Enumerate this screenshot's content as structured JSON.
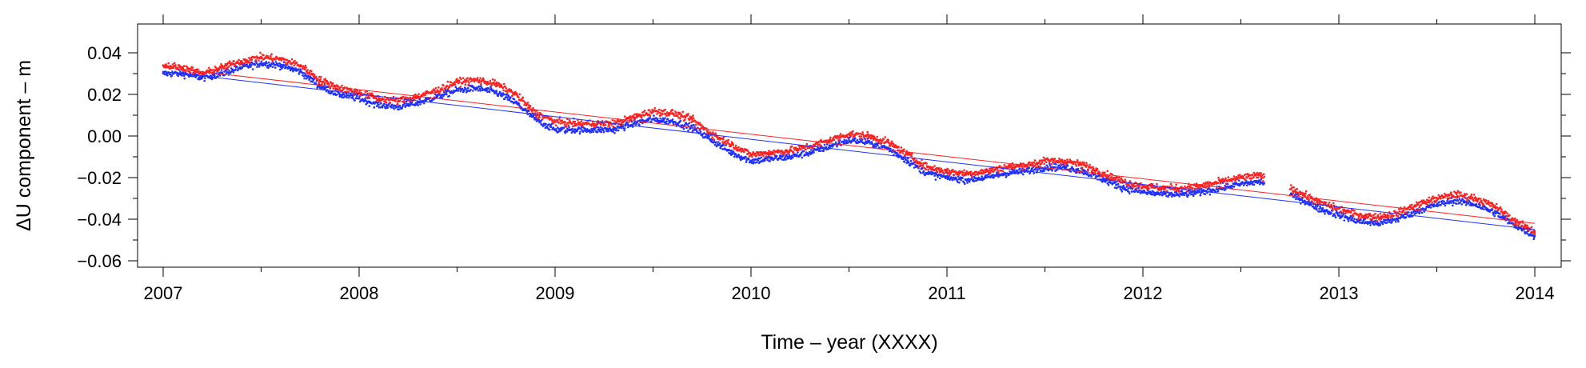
{
  "chart_data": {
    "type": "scatter",
    "title": "",
    "xlabel": "Time – year (XXXX)",
    "ylabel": "ΔU component – m",
    "xlim": [
      2007,
      2014
    ],
    "ylim": [
      -0.06,
      0.05
    ],
    "x_ticks": [
      2007,
      2008,
      2009,
      2010,
      2011,
      2012,
      2013,
      2014
    ],
    "x_tick_labels": [
      "2007",
      "2008",
      "2009",
      "2010",
      "2011",
      "2012",
      "2013",
      "2014"
    ],
    "y_ticks": [
      -0.06,
      -0.04,
      -0.02,
      0.0,
      0.02,
      0.04
    ],
    "y_tick_labels": [
      "−0.06",
      "−0.04",
      "−0.02",
      "0.00",
      "0.02",
      "0.04"
    ],
    "grid": false,
    "legend": "none",
    "data_gap": [
      2012.62,
      2012.75
    ],
    "series": [
      {
        "color": "#ff2020",
        "marker": "dot",
        "trend_line": {
          "x": [
            2007,
            2014
          ],
          "y": [
            0.033,
            -0.042
          ]
        },
        "points": [
          [
            2007.0,
            0.034
          ],
          [
            2007.1,
            0.033
          ],
          [
            2007.2,
            0.03
          ],
          [
            2007.3,
            0.033
          ],
          [
            2007.4,
            0.036
          ],
          [
            2007.5,
            0.038
          ],
          [
            2007.6,
            0.037
          ],
          [
            2007.7,
            0.034
          ],
          [
            2007.8,
            0.027
          ],
          [
            2007.9,
            0.023
          ],
          [
            2008.0,
            0.021
          ],
          [
            2008.1,
            0.018
          ],
          [
            2008.2,
            0.017
          ],
          [
            2008.3,
            0.019
          ],
          [
            2008.4,
            0.022
          ],
          [
            2008.5,
            0.026
          ],
          [
            2008.6,
            0.027
          ],
          [
            2008.7,
            0.025
          ],
          [
            2008.8,
            0.02
          ],
          [
            2008.9,
            0.011
          ],
          [
            2009.0,
            0.007
          ],
          [
            2009.1,
            0.006
          ],
          [
            2009.2,
            0.006
          ],
          [
            2009.3,
            0.006
          ],
          [
            2009.4,
            0.009
          ],
          [
            2009.5,
            0.012
          ],
          [
            2009.6,
            0.011
          ],
          [
            2009.7,
            0.008
          ],
          [
            2009.8,
            0.001
          ],
          [
            2009.9,
            -0.004
          ],
          [
            2010.0,
            -0.009
          ],
          [
            2010.1,
            -0.008
          ],
          [
            2010.2,
            -0.007
          ],
          [
            2010.3,
            -0.005
          ],
          [
            2010.4,
            -0.002
          ],
          [
            2010.5,
            0.001
          ],
          [
            2010.6,
            0.0
          ],
          [
            2010.7,
            -0.003
          ],
          [
            2010.8,
            -0.009
          ],
          [
            2010.9,
            -0.015
          ],
          [
            2011.0,
            -0.017
          ],
          [
            2011.1,
            -0.018
          ],
          [
            2011.2,
            -0.017
          ],
          [
            2011.3,
            -0.015
          ],
          [
            2011.4,
            -0.014
          ],
          [
            2011.5,
            -0.012
          ],
          [
            2011.6,
            -0.012
          ],
          [
            2011.7,
            -0.014
          ],
          [
            2011.8,
            -0.018
          ],
          [
            2011.9,
            -0.022
          ],
          [
            2012.0,
            -0.024
          ],
          [
            2012.1,
            -0.025
          ],
          [
            2012.2,
            -0.025
          ],
          [
            2012.3,
            -0.024
          ],
          [
            2012.4,
            -0.022
          ],
          [
            2012.5,
            -0.02
          ],
          [
            2012.6,
            -0.019
          ],
          [
            2012.8,
            -0.027
          ],
          [
            2012.9,
            -0.032
          ],
          [
            2013.0,
            -0.035
          ],
          [
            2013.1,
            -0.038
          ],
          [
            2013.2,
            -0.039
          ],
          [
            2013.3,
            -0.037
          ],
          [
            2013.4,
            -0.033
          ],
          [
            2013.5,
            -0.03
          ],
          [
            2013.6,
            -0.028
          ],
          [
            2013.7,
            -0.03
          ],
          [
            2013.8,
            -0.034
          ],
          [
            2013.9,
            -0.041
          ],
          [
            2014.0,
            -0.046
          ]
        ]
      },
      {
        "color": "#2030ff",
        "marker": "dot",
        "trend_line": {
          "x": [
            2007,
            2014
          ],
          "y": [
            0.031,
            -0.045
          ]
        },
        "points": [
          [
            2007.0,
            0.03
          ],
          [
            2007.1,
            0.03
          ],
          [
            2007.2,
            0.028
          ],
          [
            2007.3,
            0.03
          ],
          [
            2007.4,
            0.033
          ],
          [
            2007.5,
            0.035
          ],
          [
            2007.6,
            0.034
          ],
          [
            2007.7,
            0.031
          ],
          [
            2007.8,
            0.024
          ],
          [
            2007.9,
            0.02
          ],
          [
            2008.0,
            0.018
          ],
          [
            2008.1,
            0.015
          ],
          [
            2008.2,
            0.014
          ],
          [
            2008.3,
            0.016
          ],
          [
            2008.4,
            0.019
          ],
          [
            2008.5,
            0.022
          ],
          [
            2008.6,
            0.023
          ],
          [
            2008.7,
            0.021
          ],
          [
            2008.8,
            0.016
          ],
          [
            2008.9,
            0.008
          ],
          [
            2009.0,
            0.003
          ],
          [
            2009.1,
            0.003
          ],
          [
            2009.2,
            0.003
          ],
          [
            2009.3,
            0.003
          ],
          [
            2009.4,
            0.006
          ],
          [
            2009.5,
            0.008
          ],
          [
            2009.6,
            0.007
          ],
          [
            2009.7,
            0.004
          ],
          [
            2009.8,
            -0.002
          ],
          [
            2009.9,
            -0.008
          ],
          [
            2010.0,
            -0.012
          ],
          [
            2010.1,
            -0.011
          ],
          [
            2010.2,
            -0.01
          ],
          [
            2010.3,
            -0.008
          ],
          [
            2010.4,
            -0.005
          ],
          [
            2010.5,
            -0.002
          ],
          [
            2010.6,
            -0.003
          ],
          [
            2010.7,
            -0.006
          ],
          [
            2010.8,
            -0.012
          ],
          [
            2010.9,
            -0.018
          ],
          [
            2011.0,
            -0.02
          ],
          [
            2011.1,
            -0.021
          ],
          [
            2011.2,
            -0.02
          ],
          [
            2011.3,
            -0.018
          ],
          [
            2011.4,
            -0.017
          ],
          [
            2011.5,
            -0.015
          ],
          [
            2011.6,
            -0.015
          ],
          [
            2011.7,
            -0.017
          ],
          [
            2011.8,
            -0.021
          ],
          [
            2011.9,
            -0.025
          ],
          [
            2012.0,
            -0.027
          ],
          [
            2012.1,
            -0.028
          ],
          [
            2012.2,
            -0.028
          ],
          [
            2012.3,
            -0.027
          ],
          [
            2012.4,
            -0.025
          ],
          [
            2012.5,
            -0.023
          ],
          [
            2012.6,
            -0.022
          ],
          [
            2012.8,
            -0.03
          ],
          [
            2012.9,
            -0.035
          ],
          [
            2013.0,
            -0.038
          ],
          [
            2013.1,
            -0.041
          ],
          [
            2013.2,
            -0.042
          ],
          [
            2013.3,
            -0.04
          ],
          [
            2013.4,
            -0.036
          ],
          [
            2013.5,
            -0.033
          ],
          [
            2013.6,
            -0.031
          ],
          [
            2013.7,
            -0.033
          ],
          [
            2013.8,
            -0.037
          ],
          [
            2013.9,
            -0.043
          ],
          [
            2014.0,
            -0.048
          ]
        ]
      }
    ]
  }
}
